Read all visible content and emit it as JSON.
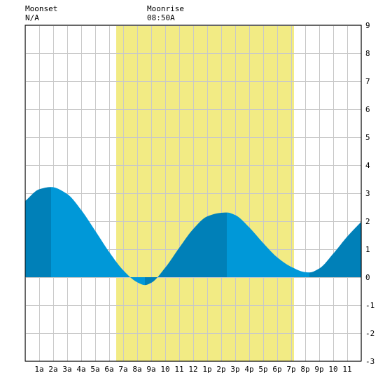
{
  "header": {
    "moonset_label": "Moonset",
    "moonset_time": "N/A",
    "moonrise_label": "Moonrise",
    "moonrise_time": "08:50A"
  },
  "chart_data": {
    "type": "area",
    "title": "",
    "xlabel": "",
    "ylabel": "",
    "x_range_hours": [
      0,
      24
    ],
    "ylim": [
      -3,
      9
    ],
    "y_ticks": [
      "-3",
      "-2",
      "-1",
      "0",
      "1",
      "2",
      "3",
      "4",
      "5",
      "6",
      "7",
      "8",
      "9"
    ],
    "x_tick_labels": [
      "1a",
      "2a",
      "3a",
      "4a",
      "5a",
      "6a",
      "7a",
      "8a",
      "9a",
      "10",
      "11",
      "12",
      "1p",
      "2p",
      "3p",
      "4p",
      "5p",
      "6p",
      "7p",
      "8p",
      "9p",
      "10",
      "11"
    ],
    "grid": "on",
    "daylight_span_hours": [
      6.5,
      19.2
    ],
    "extrema": [
      {
        "hour": 1.85,
        "height": 3.22,
        "kind": "high"
      },
      {
        "hour": 8.55,
        "height": -0.28,
        "kind": "low"
      },
      {
        "hour": 14.4,
        "height": 2.31,
        "kind": "high"
      },
      {
        "hour": 20.3,
        "height": 0.17,
        "kind": "low"
      }
    ],
    "series": [
      {
        "x": [
          0,
          1,
          1.85,
          3,
          4,
          5,
          6,
          7,
          8,
          8.55,
          9,
          10,
          11,
          12,
          13,
          14,
          14.4,
          15,
          16,
          17,
          18,
          19,
          20,
          20.3,
          21,
          22,
          23,
          24
        ],
        "values": [
          2.72,
          3.14,
          3.22,
          2.97,
          2.4,
          1.66,
          0.9,
          0.25,
          -0.18,
          -0.28,
          -0.2,
          0.34,
          1.05,
          1.72,
          2.17,
          2.3,
          2.31,
          2.22,
          1.78,
          1.22,
          0.71,
          0.37,
          0.18,
          0.17,
          0.31,
          0.84,
          1.45,
          1.98
        ]
      }
    ],
    "colors": {
      "water_light": "#0098d8",
      "water_dark": "#0080b8",
      "daylight": "#f2eb84",
      "plot_background": "#ffffff",
      "grid": "#c8c8c8"
    }
  }
}
